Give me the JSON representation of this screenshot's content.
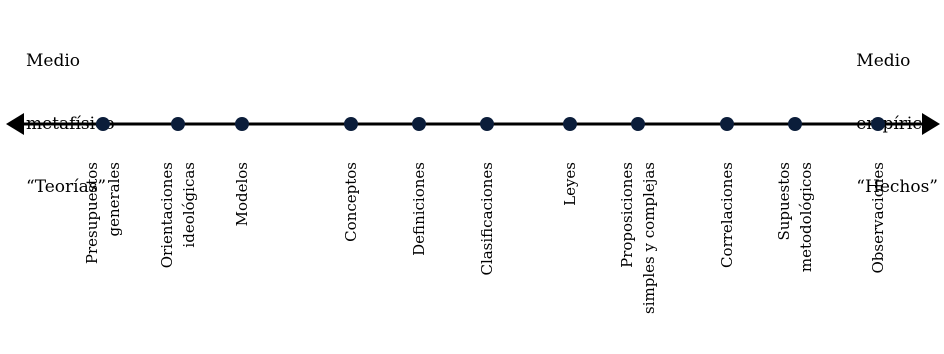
{
  "left_pole": {
    "lines": [
      "Medio",
      "metafísico",
      "“Teorías”"
    ]
  },
  "right_pole": {
    "lines": [
      "Medio",
      "empírico",
      "“Hechos”"
    ]
  },
  "colors": {
    "line": "#000000",
    "point_fill": "#0b1d3a"
  },
  "points": [
    {
      "label": [
        "Presupuestos",
        "generales"
      ]
    },
    {
      "label": [
        "Orientaciones",
        "ideológicas"
      ]
    },
    {
      "label": [
        "Modelos"
      ]
    },
    {
      "label": [
        "Conceptos"
      ]
    },
    {
      "label": [
        "Definiciones"
      ]
    },
    {
      "label": [
        "Clasificaciones"
      ]
    },
    {
      "label": [
        "Leyes"
      ]
    },
    {
      "label": [
        "Proposiciones",
        "simples y complejas"
      ]
    },
    {
      "label": [
        "Correlaciones"
      ]
    },
    {
      "label": [
        "Supuestos",
        "metodológicos"
      ]
    },
    {
      "label": [
        "Observaciones"
      ]
    }
  ]
}
